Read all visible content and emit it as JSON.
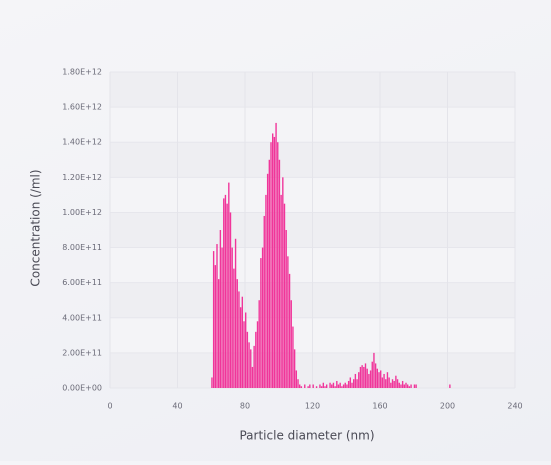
{
  "chart_data": {
    "type": "histogram",
    "x_label": "Particle diameter (nm)",
    "y_label": "Concentration (/ml)",
    "color": "#f0359a",
    "grid": true,
    "xlim": [
      0,
      240
    ],
    "xticks": [
      0,
      40,
      80,
      120,
      160,
      200,
      240
    ],
    "ylim": [
      0,
      1800000000000.0
    ],
    "yticks": [
      {
        "value": 0,
        "label": "0.00E+00"
      },
      {
        "value": 200000000000.0,
        "label": "2.00E+11"
      },
      {
        "value": 400000000000.0,
        "label": "4.00E+11"
      },
      {
        "value": 600000000000.0,
        "label": "6.00E+11"
      },
      {
        "value": 800000000000.0,
        "label": "8.00E+11"
      },
      {
        "value": 1000000000000.0,
        "label": "1.00E+12"
      },
      {
        "value": 1200000000000.0,
        "label": "1.20E+12"
      },
      {
        "value": 1400000000000.0,
        "label": "1.40E+12"
      },
      {
        "value": 1600000000000.0,
        "label": "1.60E+12"
      },
      {
        "value": 1800000000000.0,
        "label": "1.80E+12"
      }
    ],
    "bins": [
      60,
      61,
      62,
      63,
      64,
      65,
      66,
      67,
      68,
      69,
      70,
      71,
      72,
      73,
      74,
      75,
      76,
      77,
      78,
      79,
      80,
      81,
      82,
      83,
      84,
      85,
      86,
      87,
      88,
      89,
      90,
      91,
      92,
      93,
      94,
      95,
      96,
      97,
      98,
      99,
      100,
      101,
      102,
      103,
      104,
      105,
      106,
      107,
      108,
      109,
      110,
      111,
      112,
      113,
      114,
      115,
      116,
      117,
      118,
      119,
      120,
      121,
      122,
      123,
      124,
      125,
      126,
      127,
      128,
      129,
      130,
      131,
      132,
      133,
      134,
      135,
      136,
      137,
      138,
      139,
      140,
      141,
      142,
      143,
      144,
      145,
      146,
      147,
      148,
      149,
      150,
      151,
      152,
      153,
      154,
      155,
      156,
      157,
      158,
      159,
      160,
      161,
      162,
      163,
      164,
      165,
      166,
      167,
      168,
      169,
      170,
      171,
      172,
      173,
      174,
      175,
      176,
      177,
      178,
      179,
      180,
      181,
      182,
      183,
      184,
      185,
      186,
      187,
      188,
      189,
      190,
      191,
      192,
      193,
      194,
      195,
      196,
      197,
      198,
      199,
      200,
      201,
      202,
      203
    ],
    "values": [
      60000000000.0,
      780000000000.0,
      700000000000.0,
      820000000000.0,
      620000000000.0,
      900000000000.0,
      800000000000.0,
      1080000000000.0,
      1100000000000.0,
      1050000000000.0,
      1170000000000.0,
      1000000000000.0,
      800000000000.0,
      680000000000.0,
      850000000000.0,
      620000000000.0,
      550000000000.0,
      460000000000.0,
      520000000000.0,
      380000000000.0,
      430000000000.0,
      320000000000.0,
      260000000000.0,
      220000000000.0,
      120000000000.0,
      240000000000.0,
      320000000000.0,
      380000000000.0,
      500000000000.0,
      740000000000.0,
      800000000000.0,
      980000000000.0,
      1100000000000.0,
      1220000000000.0,
      1300000000000.0,
      1400000000000.0,
      1450000000000.0,
      1430000000000.0,
      1510000000000.0,
      1400000000000.0,
      1300000000000.0,
      1100000000000.0,
      1200000000000.0,
      1050000000000.0,
      900000000000.0,
      750000000000.0,
      650000000000.0,
      500000000000.0,
      350000000000.0,
      220000000000.0,
      100000000000.0,
      50000000000.0,
      20000000000.0,
      10000000000.0,
      0,
      20000000000.0,
      0,
      10000000000.0,
      20000000000.0,
      0,
      20000000000.0,
      0,
      10000000000.0,
      0,
      20000000000.0,
      10000000000.0,
      30000000000.0,
      10000000000.0,
      20000000000.0,
      0,
      30000000000.0,
      20000000000.0,
      30000000000.0,
      10000000000.0,
      40000000000.0,
      20000000000.0,
      30000000000.0,
      10000000000.0,
      20000000000.0,
      30000000000.0,
      20000000000.0,
      40000000000.0,
      60000000000.0,
      30000000000.0,
      50000000000.0,
      80000000000.0,
      50000000000.0,
      90000000000.0,
      120000000000.0,
      130000000000.0,
      120000000000.0,
      140000000000.0,
      110000000000.0,
      80000000000.0,
      100000000000.0,
      150000000000.0,
      200000000000.0,
      140000000000.0,
      110000000000.0,
      90000000000.0,
      100000000000.0,
      60000000000.0,
      80000000000.0,
      50000000000.0,
      90000000000.0,
      60000000000.0,
      30000000000.0,
      50000000000.0,
      40000000000.0,
      70000000000.0,
      50000000000.0,
      30000000000.0,
      20000000000.0,
      40000000000.0,
      20000000000.0,
      30000000000.0,
      20000000000.0,
      10000000000.0,
      20000000000.0,
      0,
      20000000000.0,
      20000000000.0,
      0,
      0,
      0,
      0,
      0,
      0,
      0,
      0,
      0,
      0,
      0,
      0,
      0,
      0,
      0,
      0,
      0,
      0,
      0,
      20000000000.0,
      0
    ]
  }
}
